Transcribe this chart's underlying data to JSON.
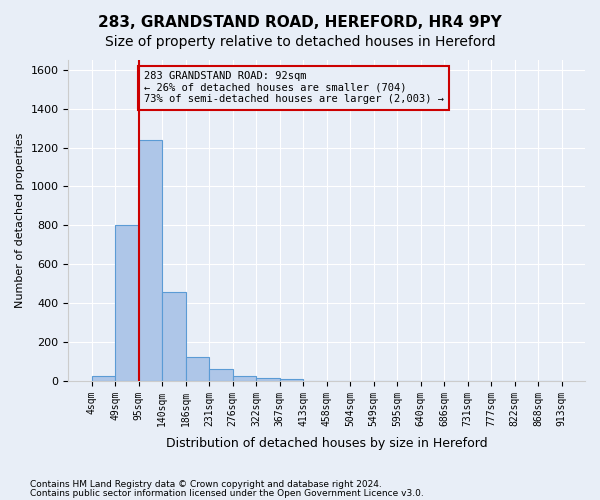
{
  "title": "283, GRANDSTAND ROAD, HEREFORD, HR4 9PY",
  "subtitle": "Size of property relative to detached houses in Hereford",
  "xlabel": "Distribution of detached houses by size in Hereford",
  "ylabel": "Number of detached properties",
  "footnote1": "Contains HM Land Registry data © Crown copyright and database right 2024.",
  "footnote2": "Contains public sector information licensed under the Open Government Licence v3.0.",
  "bin_labels": [
    "4sqm",
    "49sqm",
    "95sqm",
    "140sqm",
    "186sqm",
    "231sqm",
    "276sqm",
    "322sqm",
    "367sqm",
    "413sqm",
    "458sqm",
    "504sqm",
    "549sqm",
    "595sqm",
    "640sqm",
    "686sqm",
    "731sqm",
    "777sqm",
    "822sqm",
    "868sqm",
    "913sqm"
  ],
  "bar_values": [
    25,
    800,
    1240,
    455,
    125,
    60,
    25,
    15,
    10,
    2,
    0,
    0,
    0,
    0,
    0,
    0,
    0,
    0,
    0,
    0
  ],
  "bar_color": "#aec6e8",
  "bar_edge_color": "#5b9bd5",
  "ylim": [
    0,
    1650
  ],
  "yticks": [
    0,
    200,
    400,
    600,
    800,
    1000,
    1200,
    1400,
    1600
  ],
  "property_line_x": 2,
  "property_line_color": "#cc0000",
  "annotation_text": "283 GRANDSTAND ROAD: 92sqm\n← 26% of detached houses are smaller (704)\n73% of semi-detached houses are larger (2,003) →",
  "annotation_box_color": "#cc0000",
  "bg_color": "#e8eef7",
  "grid_color": "#ffffff",
  "title_fontsize": 11,
  "subtitle_fontsize": 10
}
